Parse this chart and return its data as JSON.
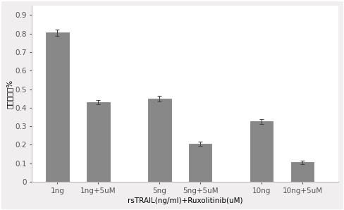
{
  "categories": [
    "1ng",
    "1ng+5uM",
    "5ng",
    "5ng+5uM",
    "10ng",
    "10ng+5uM"
  ],
  "values": [
    0.805,
    0.43,
    0.448,
    0.205,
    0.325,
    0.105
  ],
  "errors": [
    0.018,
    0.012,
    0.015,
    0.012,
    0.015,
    0.01
  ],
  "bar_color": "#888888",
  "bar_edgecolor": "#777777",
  "bar_width": 0.45,
  "ylim": [
    0,
    0.95
  ],
  "yticks": [
    0,
    0.1,
    0.2,
    0.3,
    0.4,
    0.5,
    0.6,
    0.7,
    0.8,
    0.9
  ],
  "ytick_labels": [
    "0",
    "0.1",
    "0.2",
    "0.3",
    "0.4",
    "0.5",
    "0.6",
    "0.7",
    "0.8",
    "0.9"
  ],
  "ylabel": "细胞存活率%",
  "xlabel": "rsTRAIL(ng/ml)+Ruxolitinib(uM)",
  "plot_bg": "#ffffff",
  "fig_facecolor": "#f0eeee",
  "border_color": "#bbbbbb",
  "ylabel_fontsize": 7.5,
  "xlabel_fontsize": 7.5,
  "tick_fontsize": 7.5,
  "x_positions": [
    0.5,
    1.3,
    2.5,
    3.3,
    4.5,
    5.3
  ]
}
